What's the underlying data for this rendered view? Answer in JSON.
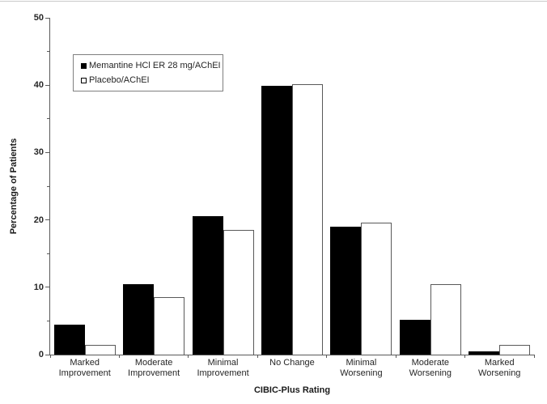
{
  "chart_data": {
    "type": "bar",
    "title": "",
    "xlabel": "CIBIC-Plus Rating",
    "ylabel": "Percentage of Patients",
    "ylim": [
      0,
      50
    ],
    "yticks": [
      0,
      10,
      20,
      30,
      40,
      50
    ],
    "yminorticks": [
      5,
      15,
      25,
      35,
      45
    ],
    "grid": false,
    "legend_position": "upper-left inside plot",
    "categories": [
      "Marked Improvement",
      "Moderate Improvement",
      "Minimal Improvement",
      "No Change",
      "Minimal Worsening",
      "Moderate Worsening",
      "Marked Worsening"
    ],
    "series": [
      {
        "name": "Memantine HCl ER 28 mg/AChEI",
        "fill": "#000000",
        "border": "#000000",
        "values": [
          4.5,
          10.4,
          20.5,
          39.9,
          19.0,
          5.2,
          0.5
        ]
      },
      {
        "name": "Placebo/AChEI",
        "fill": "#ffffff",
        "border": "#595959",
        "values": [
          1.5,
          8.5,
          18.5,
          40.1,
          19.6,
          10.4,
          1.5
        ]
      }
    ]
  },
  "colors": {
    "axis": "#595959",
    "text": "#262626",
    "legend_border": "#7f7f7f",
    "background": "#ffffff",
    "top_rule": "#c9c9c9"
  }
}
